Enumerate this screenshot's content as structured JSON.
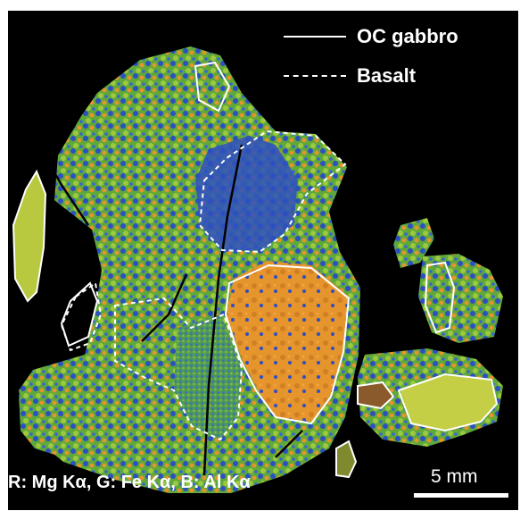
{
  "legend": {
    "solid_label": "OC gabbro",
    "dashed_label": "Basalt",
    "line_color": "#ffffff"
  },
  "caption": "R: Mg Kα, G: Fe Kα, B: Al Kα",
  "scale_bar": {
    "label": "5 mm"
  },
  "palette": {
    "background": "#000000",
    "mg_rich_orange": "#e6942c",
    "fe_rich_green": "#6bbf3a",
    "al_rich_blue": "#2e4fc2",
    "yellow_green": "#c4cf45",
    "brown": "#8a5a2a",
    "olive": "#7f8a2e",
    "outline": "#ffffff"
  }
}
